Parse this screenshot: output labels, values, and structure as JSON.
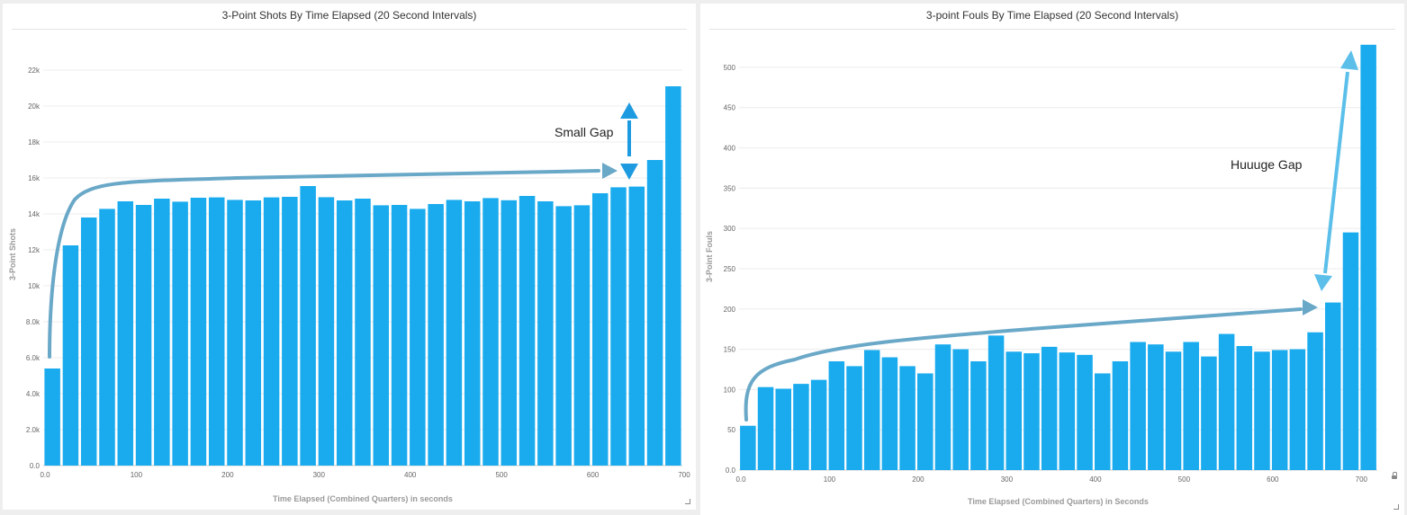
{
  "chart_data": [
    {
      "type": "bar",
      "title": "3-Point Shots By Time Elapsed (20 Second Intervals)",
      "xlabel": "Time Elapsed (Combined Quarters) in seconds",
      "ylabel": "3-Point Shots",
      "x": [
        10,
        30,
        50,
        70,
        90,
        110,
        130,
        150,
        170,
        190,
        210,
        230,
        250,
        270,
        290,
        310,
        330,
        350,
        370,
        390,
        410,
        430,
        450,
        470,
        490,
        510,
        530,
        550,
        570,
        590,
        610,
        630,
        650,
        670,
        690
      ],
      "values": [
        5400,
        12250,
        13800,
        14280,
        14700,
        14500,
        14850,
        14680,
        14900,
        14920,
        14780,
        14750,
        14920,
        14950,
        15550,
        14930,
        14750,
        14850,
        14480,
        14500,
        14280,
        14550,
        14780,
        14700,
        14880,
        14760,
        15000,
        14700,
        14430,
        14480,
        15150,
        15480,
        15520,
        17000,
        21100
      ],
      "xlim": [
        0,
        700
      ],
      "ylim": [
        0,
        23500
      ],
      "xticks": [
        "0.0",
        "100",
        "200",
        "300",
        "400",
        "500",
        "600",
        "700"
      ],
      "yticks": [
        "0.0",
        "2.0k",
        "4.0k",
        "6.0k",
        "8.0k",
        "10k",
        "12k",
        "14k",
        "16k",
        "18k",
        "20k",
        "22k"
      ],
      "ytick_values": [
        0,
        2000,
        4000,
        6000,
        8000,
        10000,
        12000,
        14000,
        16000,
        18000,
        20000,
        22000
      ],
      "grid": true,
      "bar_color": "#1aabee",
      "annotation": "Small Gap",
      "annotation_color": "#1e9be0",
      "curve_color": "#6aa8c8"
    },
    {
      "type": "bar",
      "title": "3-point Fouls By Time Elapsed (20 Second Intervals)",
      "xlabel": "Time Elapsed (Combined Quarters) in Seconds",
      "ylabel": "3-Point Fouls",
      "x": [
        10,
        30,
        50,
        70,
        90,
        110,
        130,
        150,
        170,
        190,
        210,
        230,
        250,
        270,
        290,
        310,
        330,
        350,
        370,
        390,
        410,
        430,
        450,
        470,
        490,
        510,
        530,
        550,
        570,
        590,
        610,
        630,
        650,
        670,
        690,
        710
      ],
      "values": [
        55,
        103,
        101,
        107,
        112,
        135,
        129,
        149,
        140,
        129,
        120,
        156,
        150,
        135,
        167,
        147,
        145,
        153,
        146,
        143,
        120,
        135,
        159,
        156,
        147,
        159,
        141,
        169,
        154,
        147,
        149,
        150,
        171,
        208,
        295,
        528
      ],
      "xlim": [
        0,
        720
      ],
      "ylim": [
        0,
        530
      ],
      "xticks": [
        "0.0",
        "100",
        "200",
        "300",
        "400",
        "500",
        "600",
        "700"
      ],
      "yticks": [
        "0.0",
        "50",
        "100",
        "150",
        "200",
        "250",
        "300",
        "350",
        "400",
        "450",
        "500"
      ],
      "ytick_values": [
        0,
        50,
        100,
        150,
        200,
        250,
        300,
        350,
        400,
        450,
        500
      ],
      "grid": true,
      "bar_color": "#1aabee",
      "annotation": "Huuuge Gap",
      "annotation_color": "#5bbfea",
      "curve_color": "#6aa8c8"
    }
  ]
}
